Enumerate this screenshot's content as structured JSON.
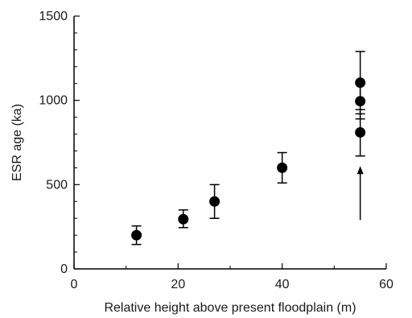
{
  "chart_data": {
    "type": "scatter",
    "xlabel": "Relative height above present floodplain (m)",
    "ylabel": "ESR age (ka)",
    "xlim": [
      0,
      60
    ],
    "ylim": [
      0,
      1500
    ],
    "x_ticks": [
      0,
      20,
      40,
      60
    ],
    "y_ticks": [
      0,
      500,
      1000,
      1500
    ],
    "x_minor_step": 10,
    "y_minor_step": 100,
    "grid": false,
    "series": [
      {
        "marker": "filled-circle",
        "color": "#000000",
        "points": [
          {
            "x": 12,
            "y": 200,
            "err_low": 145,
            "err_high": 255
          },
          {
            "x": 21,
            "y": 295,
            "err_low": 245,
            "err_high": 350
          },
          {
            "x": 27,
            "y": 400,
            "err_low": 300,
            "err_high": 500
          },
          {
            "x": 40,
            "y": 600,
            "err_low": 510,
            "err_high": 690
          },
          {
            "x": 55,
            "y": 810,
            "err_low": 670,
            "err_high": 945
          },
          {
            "x": 55,
            "y": 995,
            "err_low": 890,
            "err_high": 1100
          },
          {
            "x": 55,
            "y": 1105,
            "err_low": 920,
            "err_high": 1290
          }
        ]
      }
    ],
    "annotations": [
      {
        "type": "arrow",
        "x": 55,
        "y_from": 290,
        "y_to": 610
      }
    ]
  }
}
